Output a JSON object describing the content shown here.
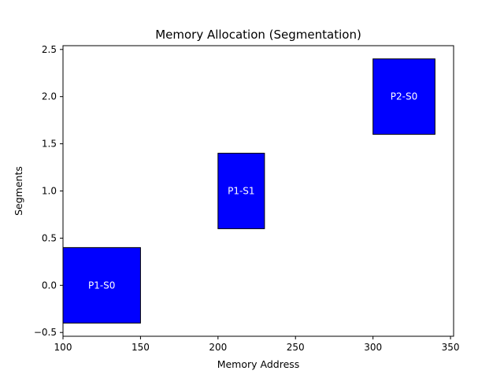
{
  "chart_data": {
    "type": "bar",
    "orientation": "horizontal",
    "title": "Memory Allocation (Segmentation)",
    "xlabel": "Memory Address",
    "ylabel": "Segments",
    "xlim": [
      100,
      352
    ],
    "ylim": [
      -0.54,
      2.54
    ],
    "x_ticks": [
      100,
      150,
      200,
      250,
      300,
      350
    ],
    "x_tick_labels": [
      "100",
      "150",
      "200",
      "250",
      "300",
      "350"
    ],
    "y_ticks": [
      -0.5,
      0.0,
      0.5,
      1.0,
      1.5,
      2.0,
      2.5
    ],
    "y_tick_labels": [
      "−0.5",
      "0.0",
      "0.5",
      "1.0",
      "1.5",
      "2.0",
      "2.5"
    ],
    "grid": false,
    "bar_height": 0.8,
    "segments": [
      {
        "label": "P1-S0",
        "y": 0,
        "start": 100,
        "size": 50
      },
      {
        "label": "P1-S1",
        "y": 1,
        "start": 200,
        "size": 30
      },
      {
        "label": "P2-S0",
        "y": 2,
        "start": 300,
        "size": 40
      }
    ],
    "colors": {
      "bar_fill": "#0000ff",
      "bar_edge": "#000000",
      "bar_text": "#ffffff",
      "axis": "#000000"
    }
  }
}
